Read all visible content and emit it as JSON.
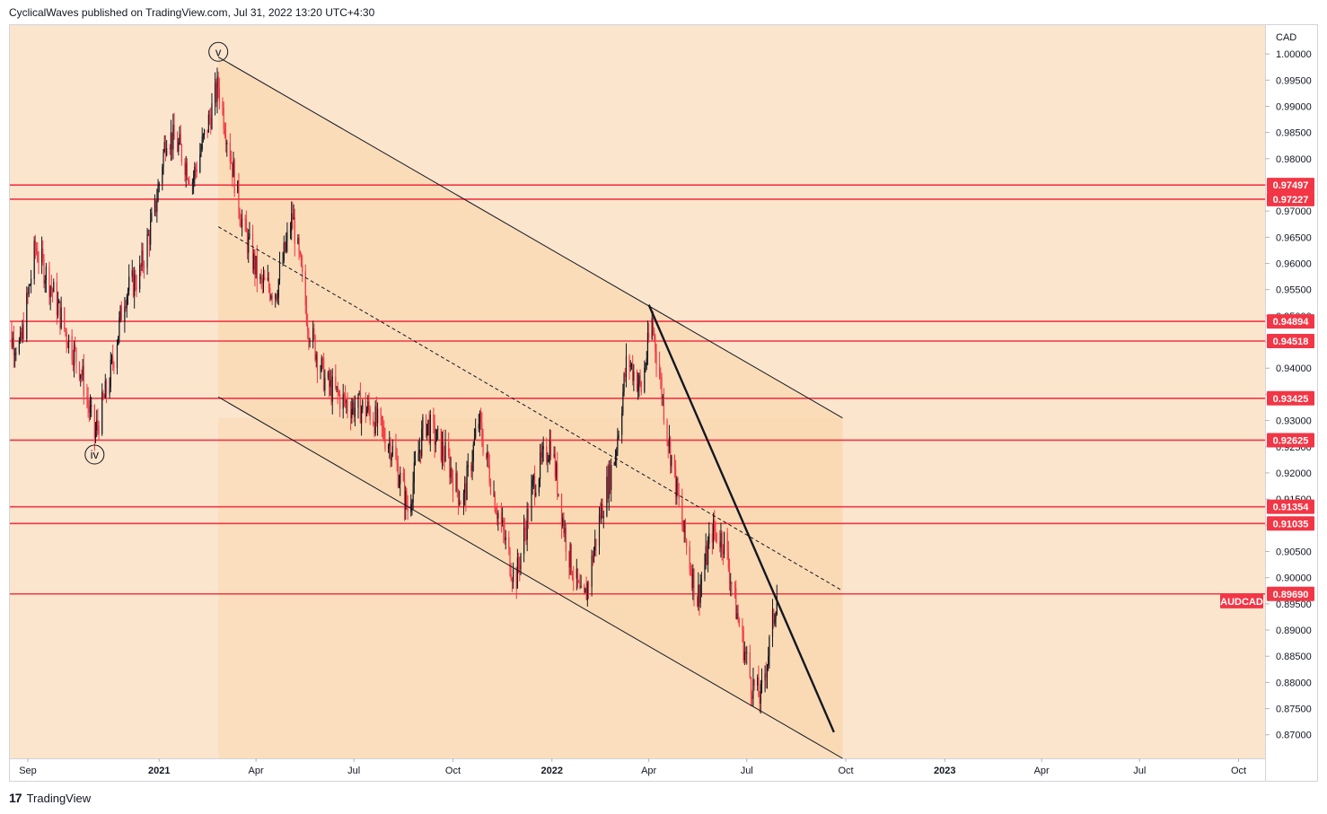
{
  "header": {
    "author": "CyclicalWaves",
    "published_text": "published on TradingView.com, Jul 31, 2022 13:20 UTC+4:30"
  },
  "footer": {
    "brand": "TradingView",
    "logo_glyph": "17"
  },
  "colors": {
    "background": "#fbe5cd",
    "channel_fill": "#f9d9b0",
    "level_line": "#f23645",
    "candle_up": "#131722",
    "candle_down": "#f23645",
    "symbol_tag": "#f23645"
  },
  "chart_data": {
    "type": "candlestick",
    "symbol": "AUDCAD",
    "currency": "CAD",
    "y_range": [
      0.8655,
      1.0055
    ],
    "y_ticks": [
      "1.00000",
      "0.99500",
      "0.99000",
      "0.98500",
      "0.98000",
      "0.97500",
      "0.97000",
      "0.96500",
      "0.96000",
      "0.95500",
      "0.95000",
      "0.94500",
      "0.94000",
      "0.93500",
      "0.93000",
      "0.92500",
      "0.92000",
      "0.91500",
      "0.91000",
      "0.90500",
      "0.90000",
      "0.89500",
      "0.89000",
      "0.88500",
      "0.88000",
      "0.87500",
      "0.87000"
    ],
    "x_ticks": [
      {
        "label": "Sep",
        "date": "2020-09-01"
      },
      {
        "label": "2021",
        "date": "2021-01-01"
      },
      {
        "label": "Apr",
        "date": "2021-04-01"
      },
      {
        "label": "Jul",
        "date": "2021-07-01"
      },
      {
        "label": "Oct",
        "date": "2021-10-01"
      },
      {
        "label": "2022",
        "date": "2022-01-01"
      },
      {
        "label": "Apr",
        "date": "2022-04-01"
      },
      {
        "label": "Jul",
        "date": "2022-07-01"
      },
      {
        "label": "Oct",
        "date": "2022-10-01"
      },
      {
        "label": "2023",
        "date": "2023-01-01"
      },
      {
        "label": "Apr",
        "date": "2023-04-01"
      },
      {
        "label": "Jul",
        "date": "2023-07-01"
      },
      {
        "label": "Oct",
        "date": "2023-10-01"
      }
    ],
    "levels": [
      {
        "value": 0.97497,
        "label": "0.97497"
      },
      {
        "value": 0.97227,
        "label": "0.97227"
      },
      {
        "value": 0.94894,
        "label": "0.94894"
      },
      {
        "value": 0.94518,
        "label": "0.94518"
      },
      {
        "value": 0.93425,
        "label": "0.93425"
      },
      {
        "value": 0.92625,
        "label": "0.92625"
      },
      {
        "value": 0.91354,
        "label": "0.91354"
      },
      {
        "value": 0.91035,
        "label": "0.91035"
      },
      {
        "value": 0.8969,
        "label": "0.89690"
      }
    ],
    "current_price_tag": {
      "value": 0.8955,
      "label": "AUDCAD"
    },
    "wave_labels": [
      {
        "text": "v",
        "date": "2021-02-25",
        "value": 1.0004
      },
      {
        "text": "iv",
        "date": "2020-11-02",
        "value": 0.9235
      }
    ],
    "channel": {
      "upper": [
        {
          "date": "2021-02-25",
          "value": 0.9994
        },
        {
          "date": "2022-09-28",
          "value": 0.9305
        }
      ],
      "middle": [
        {
          "date": "2021-02-25",
          "value": 0.967
        },
        {
          "date": "2022-09-28",
          "value": 0.8975
        }
      ],
      "lower": [
        {
          "date": "2021-02-25",
          "value": 0.9345
        },
        {
          "date": "2022-09-28",
          "value": 0.8655
        }
      ],
      "shade_end_date": "2022-09-28"
    },
    "trendline": [
      {
        "date": "2022-04-01",
        "value": 0.9521
      },
      {
        "date": "2022-09-20",
        "value": 0.8705
      }
    ],
    "price_path": [
      {
        "date": "2020-08-10",
        "value": 0.947
      },
      {
        "date": "2020-08-25",
        "value": 0.944
      },
      {
        "date": "2020-09-08",
        "value": 0.963
      },
      {
        "date": "2020-09-22",
        "value": 0.956
      },
      {
        "date": "2020-10-06",
        "value": 0.947
      },
      {
        "date": "2020-10-20",
        "value": 0.94
      },
      {
        "date": "2020-11-02",
        "value": 0.927
      },
      {
        "date": "2020-11-16",
        "value": 0.938
      },
      {
        "date": "2020-11-30",
        "value": 0.954
      },
      {
        "date": "2020-12-14",
        "value": 0.958
      },
      {
        "date": "2020-12-28",
        "value": 0.97
      },
      {
        "date": "2021-01-08",
        "value": 0.985
      },
      {
        "date": "2021-01-20",
        "value": 0.982
      },
      {
        "date": "2021-02-01",
        "value": 0.976
      },
      {
        "date": "2021-02-12",
        "value": 0.984
      },
      {
        "date": "2021-02-25",
        "value": 0.994
      },
      {
        "date": "2021-03-08",
        "value": 0.981
      },
      {
        "date": "2021-03-20",
        "value": 0.967
      },
      {
        "date": "2021-04-05",
        "value": 0.956
      },
      {
        "date": "2021-04-20",
        "value": 0.955
      },
      {
        "date": "2021-05-05",
        "value": 0.969
      },
      {
        "date": "2021-05-20",
        "value": 0.948
      },
      {
        "date": "2021-06-05",
        "value": 0.937
      },
      {
        "date": "2021-06-25",
        "value": 0.933
      },
      {
        "date": "2021-07-15",
        "value": 0.932
      },
      {
        "date": "2021-08-05",
        "value": 0.925
      },
      {
        "date": "2021-08-20",
        "value": 0.913
      },
      {
        "date": "2021-09-05",
        "value": 0.93
      },
      {
        "date": "2021-09-25",
        "value": 0.923
      },
      {
        "date": "2021-10-10",
        "value": 0.914
      },
      {
        "date": "2021-10-25",
        "value": 0.93
      },
      {
        "date": "2021-11-10",
        "value": 0.914
      },
      {
        "date": "2021-11-28",
        "value": 0.899
      },
      {
        "date": "2021-12-15",
        "value": 0.918
      },
      {
        "date": "2021-12-31",
        "value": 0.926
      },
      {
        "date": "2022-01-15",
        "value": 0.906
      },
      {
        "date": "2022-01-30",
        "value": 0.894
      },
      {
        "date": "2022-02-15",
        "value": 0.912
      },
      {
        "date": "2022-03-01",
        "value": 0.924
      },
      {
        "date": "2022-03-12",
        "value": 0.942
      },
      {
        "date": "2022-03-25",
        "value": 0.936
      },
      {
        "date": "2022-04-04",
        "value": 0.949
      },
      {
        "date": "2022-04-18",
        "value": 0.928
      },
      {
        "date": "2022-05-02",
        "value": 0.91
      },
      {
        "date": "2022-05-16",
        "value": 0.896
      },
      {
        "date": "2022-05-30",
        "value": 0.909
      },
      {
        "date": "2022-06-10",
        "value": 0.907
      },
      {
        "date": "2022-06-22",
        "value": 0.893
      },
      {
        "date": "2022-07-05",
        "value": 0.88
      },
      {
        "date": "2022-07-14",
        "value": 0.877
      },
      {
        "date": "2022-07-22",
        "value": 0.887
      },
      {
        "date": "2022-07-29",
        "value": 0.897
      }
    ]
  }
}
